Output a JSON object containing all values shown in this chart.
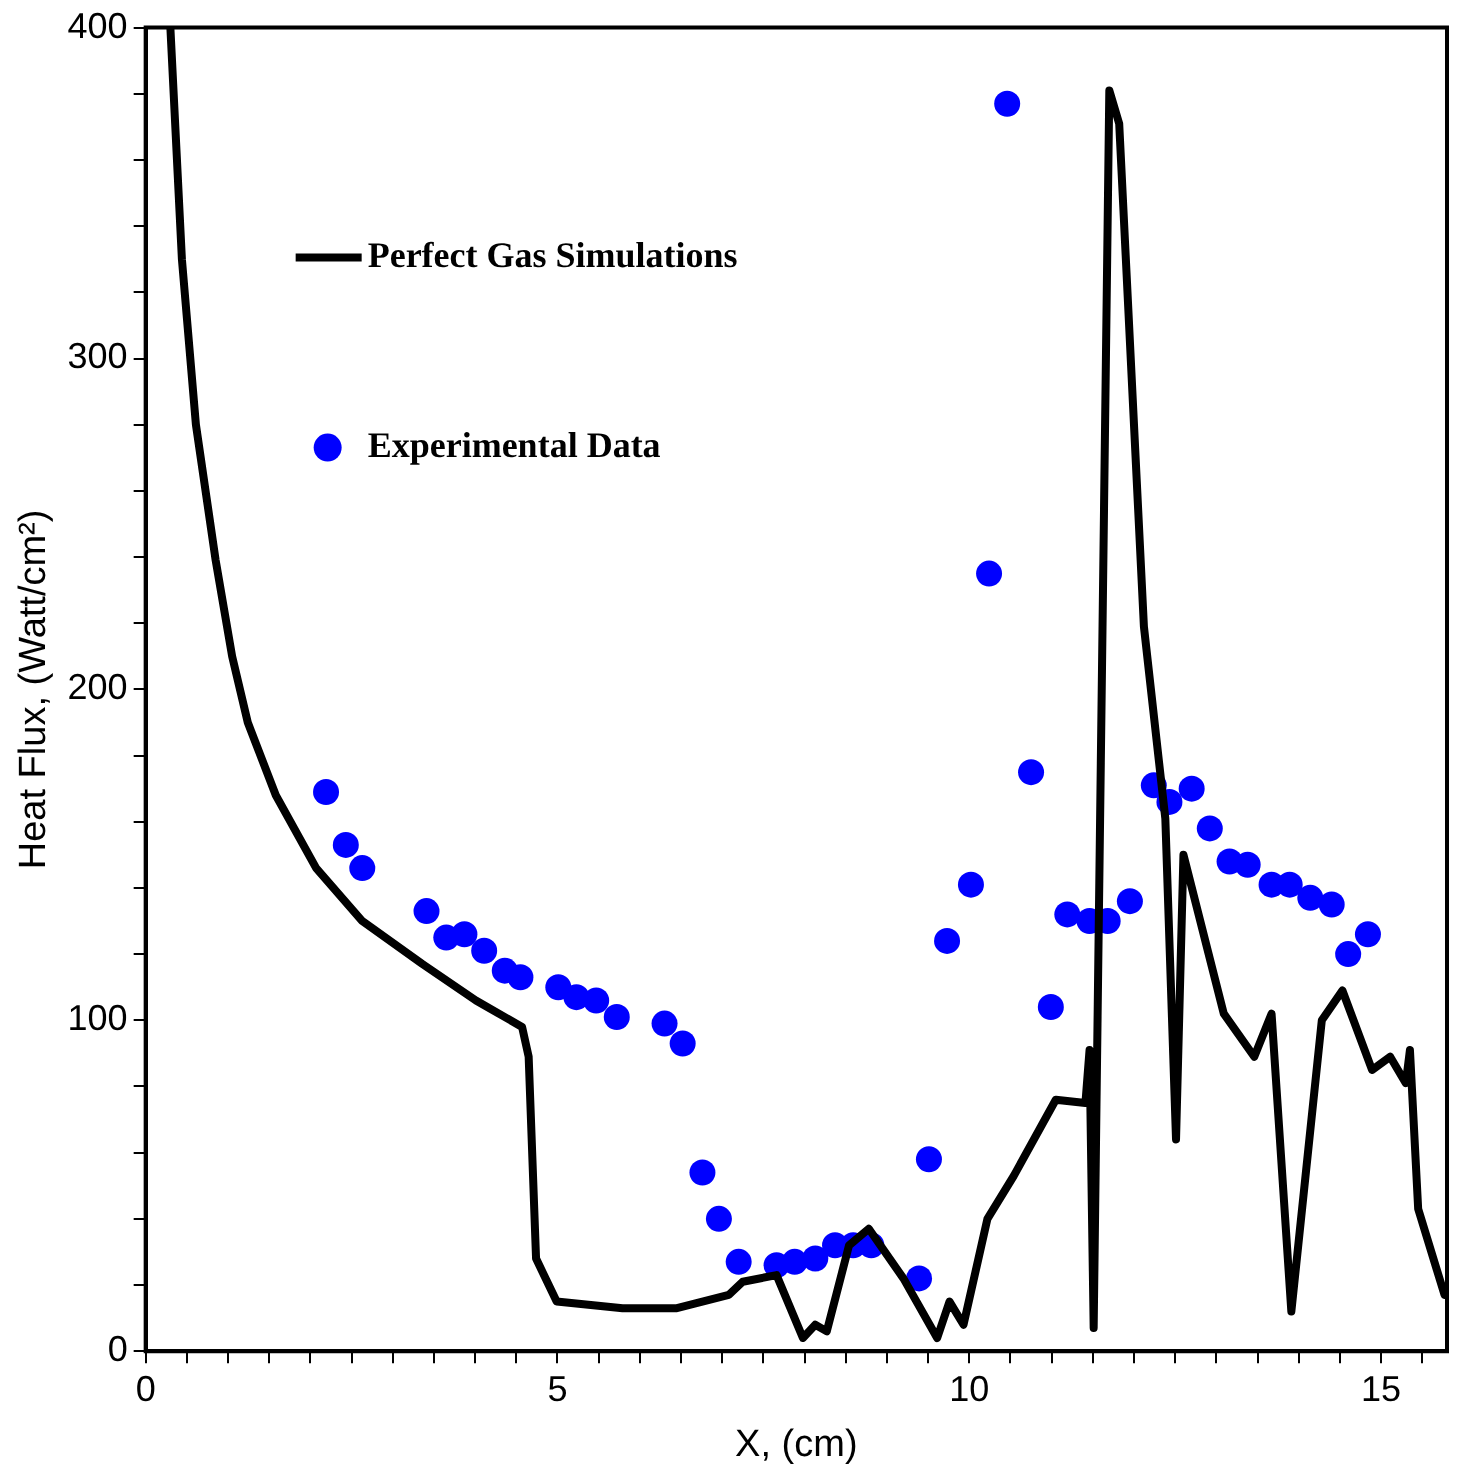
{
  "chart_data": {
    "type": "line",
    "xlabel": "X, (cm)",
    "ylabel": "Heat Flux, (Watt/cm²)",
    "xlim": [
      0,
      15.8
    ],
    "ylim": [
      0,
      400
    ],
    "xticks": [
      0,
      {
        "value": 0.5,
        "label": null
      },
      {
        "value": 1,
        "label": null
      },
      {
        "value": 1.5,
        "label": null
      },
      {
        "value": 2,
        "label": null
      },
      {
        "value": 2.5,
        "label": null
      },
      {
        "value": 3,
        "label": null
      },
      {
        "value": 3.5,
        "label": null
      },
      {
        "value": 4,
        "label": null
      },
      {
        "value": 4.5,
        "label": null
      },
      5,
      {
        "value": 5.5,
        "label": null
      },
      {
        "value": 6,
        "label": null
      },
      {
        "value": 6.5,
        "label": null
      },
      {
        "value": 7,
        "label": null
      },
      {
        "value": 7.5,
        "label": null
      },
      {
        "value": 8,
        "label": null
      },
      {
        "value": 8.5,
        "label": null
      },
      {
        "value": 9,
        "label": null
      },
      {
        "value": 9.5,
        "label": null
      },
      10,
      {
        "value": 10.5,
        "label": null
      },
      {
        "value": 11,
        "label": null
      },
      {
        "value": 11.5,
        "label": null
      },
      {
        "value": 12,
        "label": null
      },
      {
        "value": 12.5,
        "label": null
      },
      {
        "value": 13,
        "label": null
      },
      {
        "value": 13.5,
        "label": null
      },
      {
        "value": 14,
        "label": null
      },
      {
        "value": 14.5,
        "label": null
      },
      15,
      {
        "value": 15.5,
        "label": null
      }
    ],
    "yticks": [
      0,
      {
        "value": 20,
        "label": null
      },
      {
        "value": 40,
        "label": null
      },
      {
        "value": 60,
        "label": null
      },
      {
        "value": 80,
        "label": null
      },
      100,
      {
        "value": 120,
        "label": null
      },
      {
        "value": 140,
        "label": null
      },
      {
        "value": 160,
        "label": null
      },
      {
        "value": 180,
        "label": null
      },
      200,
      {
        "value": 220,
        "label": null
      },
      {
        "value": 240,
        "label": null
      },
      {
        "value": 260,
        "label": null
      },
      {
        "value": 280,
        "label": null
      },
      300,
      {
        "value": 320,
        "label": null
      },
      {
        "value": 340,
        "label": null
      },
      {
        "value": 360,
        "label": null
      },
      {
        "value": 380,
        "label": null
      },
      400
    ],
    "grid": false,
    "legend": "top left",
    "series": [
      {
        "name": "Perfect Gas Simulations",
        "color": "#000000",
        "marker": "none",
        "line_style": "solid",
        "x": [
          0.3,
          0.44,
          0.61,
          0.85,
          1.05,
          1.24,
          1.58,
          2.07,
          2.63,
          3.36,
          4.01,
          4.57,
          4.65,
          4.74,
          4.99,
          5.79,
          6.45,
          7.08,
          7.25,
          7.66,
          7.98,
          8.13,
          8.27,
          8.54,
          8.78,
          9.2,
          9.61,
          9.76,
          9.93,
          10.22,
          10.54,
          11.05,
          11.41,
          11.46,
          11.51,
          11.7,
          11.82,
          12.12,
          12.38,
          12.51,
          12.6,
          13.09,
          13.46,
          13.67,
          13.91,
          14.28,
          14.53,
          14.89,
          15.11,
          15.3,
          15.35,
          15.45,
          15.77
        ],
        "values": [
          400,
          330,
          280,
          239,
          210,
          190,
          168,
          146,
          130,
          117,
          106,
          98,
          89,
          28,
          15,
          13,
          13,
          17,
          21,
          23,
          4,
          8,
          6,
          32,
          37,
          22,
          4,
          15,
          8,
          40,
          53,
          76,
          75,
          91,
          7,
          381,
          371,
          219,
          161,
          64,
          150,
          102,
          89,
          102,
          12,
          100,
          109,
          85,
          89,
          81,
          91,
          43,
          17
        ]
      },
      {
        "name": "Experimental Data",
        "type": "scatter",
        "color": "#0000ff",
        "marker": "circle",
        "x": [
          2.19,
          2.43,
          2.63,
          3.41,
          3.65,
          3.87,
          4.11,
          4.36,
          4.55,
          5.01,
          5.23,
          5.47,
          5.72,
          6.3,
          6.52,
          6.76,
          6.96,
          7.2,
          7.66,
          7.88,
          8.13,
          8.37,
          8.59,
          8.81,
          9.39,
          9.51,
          9.73,
          10.02,
          10.24,
          10.46,
          10.75,
          10.99,
          11.19,
          11.46,
          11.68,
          11.95,
          12.24,
          12.43,
          12.7,
          12.92,
          13.16,
          13.38,
          13.67,
          13.89,
          14.14,
          14.4,
          14.6,
          14.84
        ],
        "values": [
          169,
          153,
          146,
          133,
          125,
          126,
          121,
          115,
          113,
          110,
          107,
          106,
          101,
          99,
          93,
          54,
          40,
          27,
          26,
          27,
          28,
          32,
          32,
          32,
          22,
          58,
          124,
          141,
          235,
          377,
          175,
          104,
          132,
          130,
          130,
          136,
          171,
          166,
          170,
          158,
          148,
          147,
          141,
          141,
          137,
          135,
          120,
          126
        ]
      }
    ]
  }
}
